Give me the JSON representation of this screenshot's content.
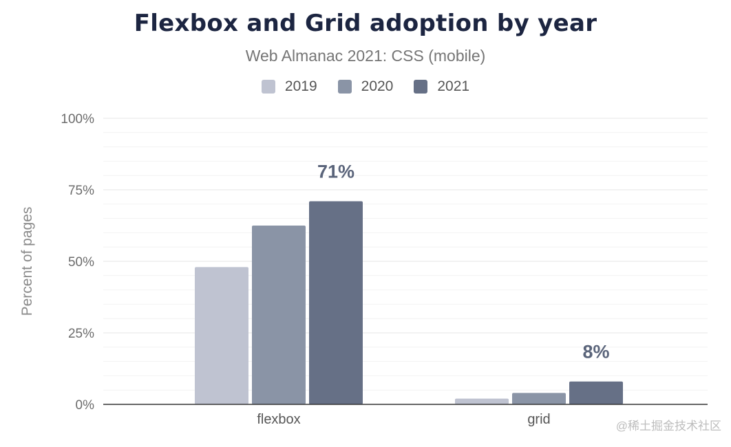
{
  "chart_data": {
    "type": "bar",
    "title": "Flexbox and Grid adoption by year",
    "subtitle": "Web Almanac 2021: CSS (mobile)",
    "ylabel": "Percent of pages",
    "xlabel": "",
    "ylim": [
      0,
      100
    ],
    "yticks": [
      0,
      25,
      50,
      75,
      100
    ],
    "ytick_suffix": "%",
    "grid": true,
    "legend": "top",
    "categories": [
      "flexbox",
      "grid"
    ],
    "series": [
      {
        "name": "2019",
        "color": "#bfc3d1",
        "values": [
          48,
          2
        ]
      },
      {
        "name": "2020",
        "color": "#8a94a6",
        "values": [
          62.5,
          4
        ]
      },
      {
        "name": "2021",
        "color": "#667086",
        "values": [
          71,
          8
        ]
      }
    ],
    "data_labels": [
      {
        "series": "2021",
        "category": "flexbox",
        "text": "71%"
      },
      {
        "series": "2021",
        "category": "grid",
        "text": "8%"
      }
    ]
  },
  "watermark": "@稀土掘金技术社区"
}
